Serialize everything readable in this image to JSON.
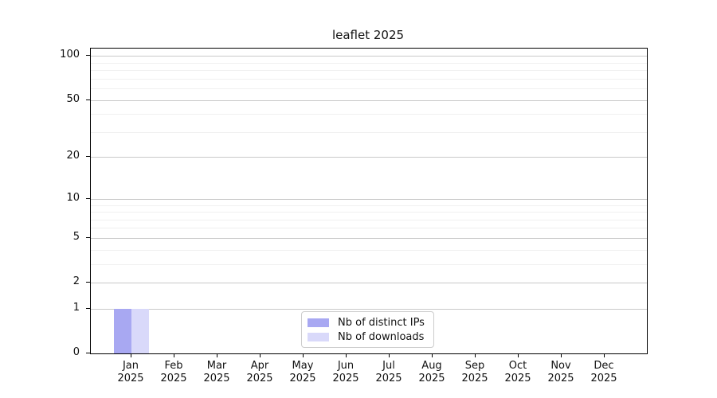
{
  "chart_data": {
    "type": "bar",
    "title": "leaflet 2025",
    "x_axis": {
      "categories": [
        "Jan",
        "Feb",
        "Mar",
        "Apr",
        "May",
        "Jun",
        "Jul",
        "Aug",
        "Sep",
        "Oct",
        "Nov",
        "Dec"
      ],
      "year_label": "2025"
    },
    "y_axis": {
      "scale": "log1p",
      "max": 112,
      "major_ticks": [
        0,
        1,
        2,
        5,
        10,
        20,
        50,
        100
      ],
      "minor_ticks": [
        3,
        4,
        6,
        7,
        8,
        9,
        30,
        40,
        60,
        70,
        80,
        90
      ]
    },
    "series": [
      {
        "name": "Nb of distinct IPs",
        "color": "#a8a8f2",
        "values": [
          1,
          0,
          0,
          0,
          0,
          0,
          0,
          0,
          0,
          0,
          0,
          0
        ]
      },
      {
        "name": "Nb of downloads",
        "color": "#d9d9fa",
        "values": [
          1,
          0,
          0,
          0,
          0,
          0,
          0,
          0,
          0,
          0,
          0,
          0
        ]
      }
    ],
    "legend": {
      "position": "lower center"
    },
    "grid": "both",
    "colors": {
      "background": "#ffffff",
      "spine": "#000000",
      "major_grid": "#c9c9c9",
      "minor_grid": "#f0f0f0",
      "text": "#111111",
      "legend_border": "#cccccc"
    }
  }
}
